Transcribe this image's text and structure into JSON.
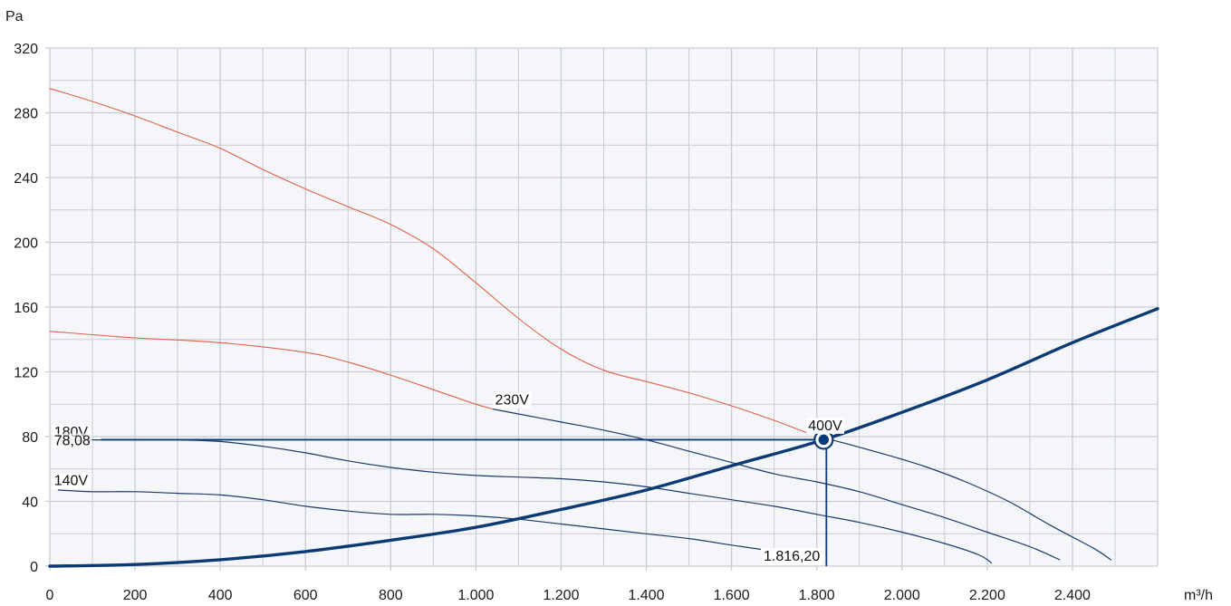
{
  "chart_data": {
    "type": "line",
    "x_unit": "m³/h",
    "y_unit": "Pa",
    "xlim": [
      0,
      2600
    ],
    "ylim": [
      0,
      320
    ],
    "x_ticks": [
      0,
      200,
      400,
      600,
      800,
      1000,
      1200,
      1400,
      1600,
      1800,
      2000,
      2200,
      2400
    ],
    "x_tick_labels": [
      "0",
      "200",
      "400",
      "600",
      "800",
      "1.000",
      "1.200",
      "1.400",
      "1.600",
      "1.800",
      "2.000",
      "2.200",
      "2.400"
    ],
    "y_ticks": [
      0,
      40,
      80,
      120,
      160,
      200,
      240,
      280,
      320
    ],
    "y_tick_labels": [
      "0",
      "40",
      "80",
      "120",
      "160",
      "200",
      "240",
      "280",
      "320"
    ],
    "grid": true,
    "colors": {
      "fan_curve": "#1c3a68",
      "system_curve": "#0b3a75",
      "limit_curve": "#e06048",
      "plot_bg": "#f4f6f9",
      "grid": "#c9ccd3"
    },
    "series": [
      {
        "name": "400V",
        "role": "fan",
        "points": [
          [
            1820,
            79
          ],
          [
            1850,
            77
          ],
          [
            1920,
            72
          ],
          [
            2000,
            66
          ],
          [
            2060,
            61
          ],
          [
            2150,
            52
          ],
          [
            2250,
            40
          ],
          [
            2350,
            25
          ],
          [
            2450,
            11
          ],
          [
            2490,
            4
          ]
        ]
      },
      {
        "name": "230V",
        "role": "fan",
        "points": [
          [
            1040,
            97
          ],
          [
            1100,
            94
          ],
          [
            1200,
            89
          ],
          [
            1300,
            84
          ],
          [
            1400,
            78
          ],
          [
            1500,
            71
          ],
          [
            1600,
            64
          ],
          [
            1700,
            57
          ],
          [
            1800,
            52
          ],
          [
            1900,
            46
          ],
          [
            2000,
            38
          ],
          [
            2100,
            30
          ],
          [
            2200,
            21
          ],
          [
            2300,
            12
          ],
          [
            2370,
            4
          ]
        ]
      },
      {
        "name": "180V",
        "role": "fan",
        "points": [
          [
            20,
            78
          ],
          [
            100,
            78
          ],
          [
            200,
            78
          ],
          [
            300,
            78
          ],
          [
            400,
            77
          ],
          [
            500,
            74
          ],
          [
            600,
            70
          ],
          [
            700,
            65
          ],
          [
            800,
            61
          ],
          [
            900,
            58
          ],
          [
            1000,
            56
          ],
          [
            1100,
            55
          ],
          [
            1200,
            54
          ],
          [
            1300,
            52
          ],
          [
            1400,
            49
          ],
          [
            1500,
            45
          ],
          [
            1600,
            41
          ],
          [
            1700,
            37
          ],
          [
            1800,
            32
          ],
          [
            1900,
            27
          ],
          [
            2000,
            21
          ],
          [
            2100,
            14
          ],
          [
            2180,
            7
          ],
          [
            2210,
            2
          ]
        ]
      },
      {
        "name": "140V",
        "role": "fan",
        "points": [
          [
            20,
            47
          ],
          [
            100,
            46
          ],
          [
            200,
            46
          ],
          [
            300,
            45
          ],
          [
            400,
            44
          ],
          [
            500,
            41
          ],
          [
            600,
            37
          ],
          [
            700,
            34
          ],
          [
            800,
            32
          ],
          [
            900,
            32
          ],
          [
            1000,
            31
          ],
          [
            1100,
            29
          ],
          [
            1200,
            26
          ],
          [
            1300,
            23
          ],
          [
            1400,
            20
          ],
          [
            1500,
            17
          ],
          [
            1600,
            13
          ],
          [
            1700,
            9
          ],
          [
            1780,
            5
          ],
          [
            1800,
            3
          ]
        ]
      },
      {
        "name": "",
        "role": "limit",
        "points": [
          [
            0,
            295
          ],
          [
            100,
            287
          ],
          [
            200,
            278
          ],
          [
            300,
            268
          ],
          [
            400,
            258
          ],
          [
            500,
            245
          ],
          [
            600,
            233
          ],
          [
            700,
            222
          ],
          [
            800,
            211
          ],
          [
            900,
            196
          ],
          [
            1000,
            175
          ],
          [
            1100,
            153
          ],
          [
            1200,
            134
          ],
          [
            1300,
            121
          ],
          [
            1400,
            114
          ],
          [
            1500,
            107
          ],
          [
            1600,
            99
          ],
          [
            1700,
            90
          ],
          [
            1780,
            82
          ]
        ]
      },
      {
        "name": "",
        "role": "limit",
        "points": [
          [
            0,
            145
          ],
          [
            200,
            141
          ],
          [
            400,
            138
          ],
          [
            600,
            132
          ],
          [
            700,
            126
          ],
          [
            800,
            118
          ],
          [
            900,
            109
          ],
          [
            1000,
            100
          ],
          [
            1040,
            97
          ]
        ]
      },
      {
        "name": "",
        "role": "system",
        "points": [
          [
            0,
            0
          ],
          [
            200,
            1
          ],
          [
            400,
            4
          ],
          [
            600,
            9
          ],
          [
            800,
            16
          ],
          [
            1000,
            24
          ],
          [
            1200,
            35
          ],
          [
            1400,
            47
          ],
          [
            1600,
            62
          ],
          [
            1816.2,
            78.08
          ],
          [
            2000,
            95
          ],
          [
            2200,
            115
          ],
          [
            2400,
            138
          ],
          [
            2600,
            159
          ]
        ]
      }
    ],
    "operating_point": {
      "x": 1816.2,
      "y": 78.08,
      "x_label": "1.816,20",
      "y_label": "78,08"
    },
    "curve_labels": [
      {
        "text": "400V",
        "x": 1780,
        "y": 84
      },
      {
        "text": "230V",
        "x": 1045,
        "y": 100
      },
      {
        "text": "180V",
        "x": 10,
        "y": 80
      },
      {
        "text": "140V",
        "x": 10,
        "y": 50
      }
    ]
  }
}
